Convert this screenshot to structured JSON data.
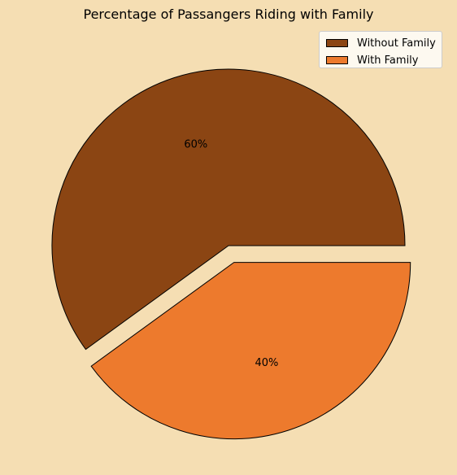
{
  "chart_data": {
    "type": "pie",
    "title": "Percentage of Passangers Riding with Family",
    "labels": [
      "Without Family",
      "With Family"
    ],
    "values": [
      60,
      40
    ],
    "value_labels": [
      "60%",
      "40%"
    ],
    "colors": [
      "#8B4513",
      "#ED7A2D"
    ],
    "explode": [
      0,
      0.1
    ],
    "start_angle_deg": 0,
    "edge_color": "#000000",
    "background_color": "#F5DEB3",
    "legend_position": "top-right"
  }
}
